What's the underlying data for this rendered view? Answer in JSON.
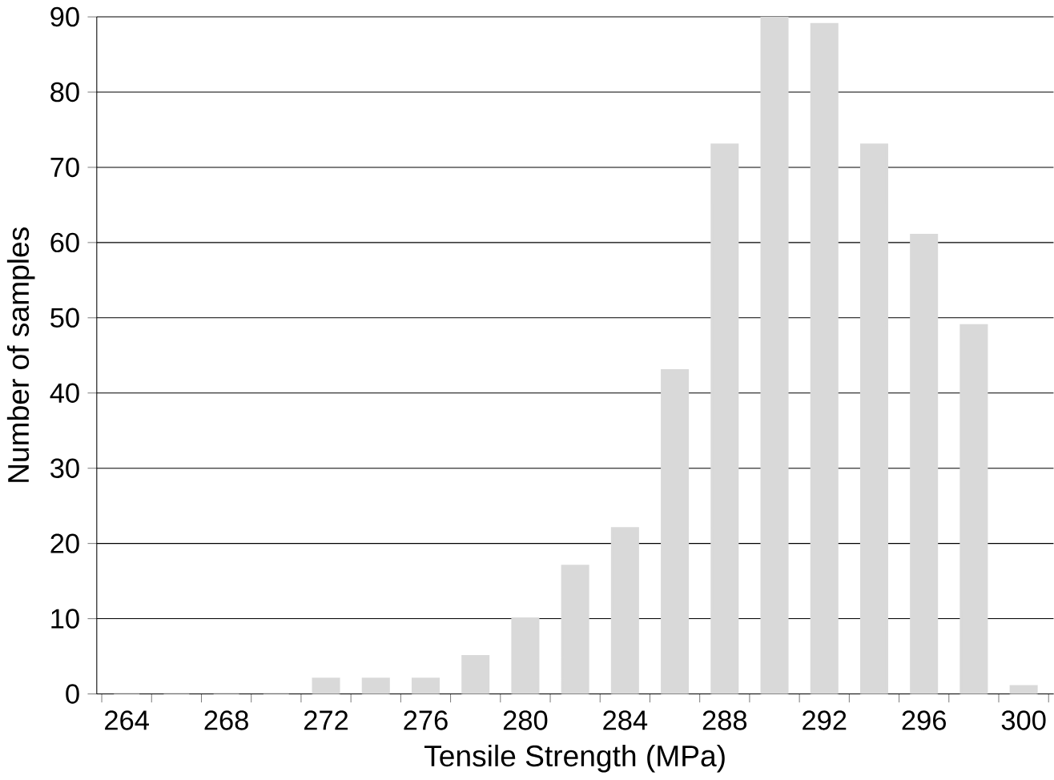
{
  "chart_data": {
    "type": "bar",
    "xlabel": "Tensile Strength (MPa)",
    "ylabel": "Number of samples",
    "categories": [
      "264",
      null,
      "268",
      null,
      "272",
      null,
      "276",
      null,
      "280",
      null,
      "284",
      null,
      "288",
      null,
      "292",
      null,
      "296",
      null,
      "300"
    ],
    "values": [
      0,
      0,
      0,
      0,
      2,
      2,
      2,
      5,
      10,
      17,
      22,
      43,
      73,
      90,
      89,
      73,
      61,
      49,
      1
    ],
    "color": "#d9d9d9",
    "ylim": [
      0,
      90
    ],
    "yticks": [
      0,
      10,
      20,
      30,
      40,
      50,
      60,
      70,
      80,
      90
    ],
    "grid": "y"
  }
}
